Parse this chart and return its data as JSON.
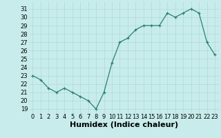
{
  "x": [
    0,
    1,
    2,
    3,
    4,
    5,
    6,
    7,
    8,
    9,
    10,
    11,
    12,
    13,
    14,
    15,
    16,
    17,
    18,
    19,
    20,
    21,
    22,
    23
  ],
  "y": [
    23,
    22.5,
    21.5,
    21,
    21.5,
    21,
    20.5,
    20,
    19,
    21,
    24.5,
    27,
    27.5,
    28.5,
    29,
    29,
    29,
    30.5,
    30,
    30.5,
    31,
    30.5,
    27,
    25.5
  ],
  "xlabel": "Humidex (Indice chaleur)",
  "xlim": [
    -0.5,
    23.5
  ],
  "ylim": [
    18.5,
    31.9
  ],
  "yticks": [
    19,
    20,
    21,
    22,
    23,
    24,
    25,
    26,
    27,
    28,
    29,
    30,
    31
  ],
  "xticks": [
    0,
    1,
    2,
    3,
    4,
    5,
    6,
    7,
    8,
    9,
    10,
    11,
    12,
    13,
    14,
    15,
    16,
    17,
    18,
    19,
    20,
    21,
    22,
    23
  ],
  "line_color": "#2a7f6f",
  "marker": "+",
  "bg_color": "#c8ecec",
  "grid_color": "#afd8d8",
  "tick_label_fontsize": 6.0,
  "xlabel_fontsize": 8.0
}
